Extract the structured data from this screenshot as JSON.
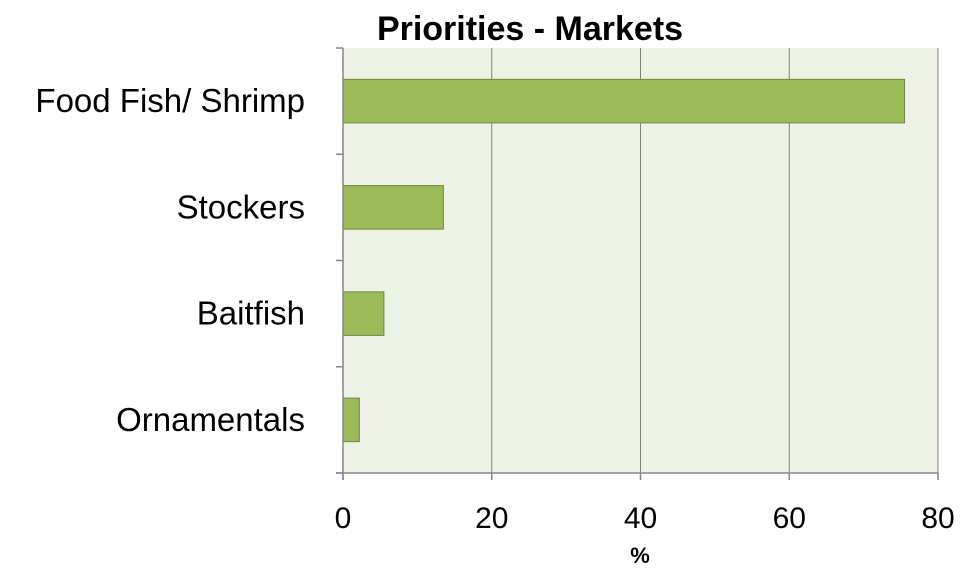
{
  "chart_data": {
    "type": "bar",
    "orientation": "horizontal",
    "title": "Priorities - Markets",
    "xlabel": "%",
    "ylabel": "",
    "categories": [
      "Food Fish/ Shrimp",
      "Stockers",
      "Baitfish",
      "Ornamentals"
    ],
    "values": [
      75.5,
      13.5,
      5.5,
      2.2
    ],
    "xlim": [
      0,
      80
    ],
    "xticks": [
      "0",
      "20",
      "40",
      "60",
      "80"
    ],
    "grid": true,
    "legend": "none",
    "colors": {
      "bar_fill": "#9bbb59",
      "bar_stroke": "#71893f",
      "plot_background": "#eef2e6",
      "gridline": "#7f7f7f",
      "axis": "#868686"
    }
  }
}
